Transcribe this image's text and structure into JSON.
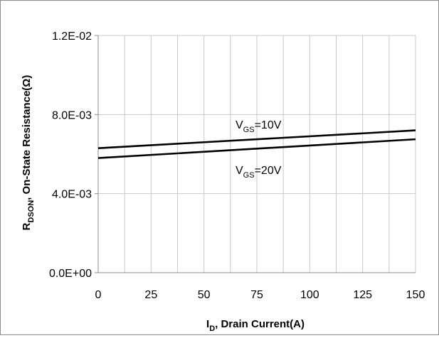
{
  "chart_data": {
    "type": "line",
    "xlabel_main": "I",
    "xlabel_sub": "D",
    "xlabel_rest": ", Drain Current(A)",
    "ylabel_main": "R",
    "ylabel_sub": "DSON",
    "ylabel_rest": ", On-State Resistance(Ω)",
    "xlim": [
      0,
      150
    ],
    "ylim": [
      0,
      0.012
    ],
    "x_ticks": [
      0,
      25,
      50,
      75,
      100,
      125,
      150
    ],
    "x_tick_labels": [
      "0",
      "25",
      "50",
      "75",
      "100",
      "125",
      "150"
    ],
    "x_minor_gridlines": [
      12.5,
      37.5,
      62.5,
      87.5,
      112.5,
      137.5
    ],
    "y_ticks": [
      0,
      0.004,
      0.008,
      0.012
    ],
    "y_tick_labels": [
      "0.0E+00",
      "4.0E-03",
      "8.0E-03",
      "1.2E-02"
    ],
    "grid": true,
    "line_color": "#000000",
    "grid_color": "#c8c8c8",
    "series": [
      {
        "x": [
          0,
          150
        ],
        "y": [
          0.0063,
          0.0072
        ]
      },
      {
        "x": [
          0,
          150
        ],
        "y": [
          0.0058,
          0.00675
        ]
      }
    ],
    "annotations": [
      {
        "main": "V",
        "sub": "GS",
        "rest": "=10V"
      },
      {
        "main": "V",
        "sub": "GS",
        "rest": "=20V"
      }
    ]
  }
}
